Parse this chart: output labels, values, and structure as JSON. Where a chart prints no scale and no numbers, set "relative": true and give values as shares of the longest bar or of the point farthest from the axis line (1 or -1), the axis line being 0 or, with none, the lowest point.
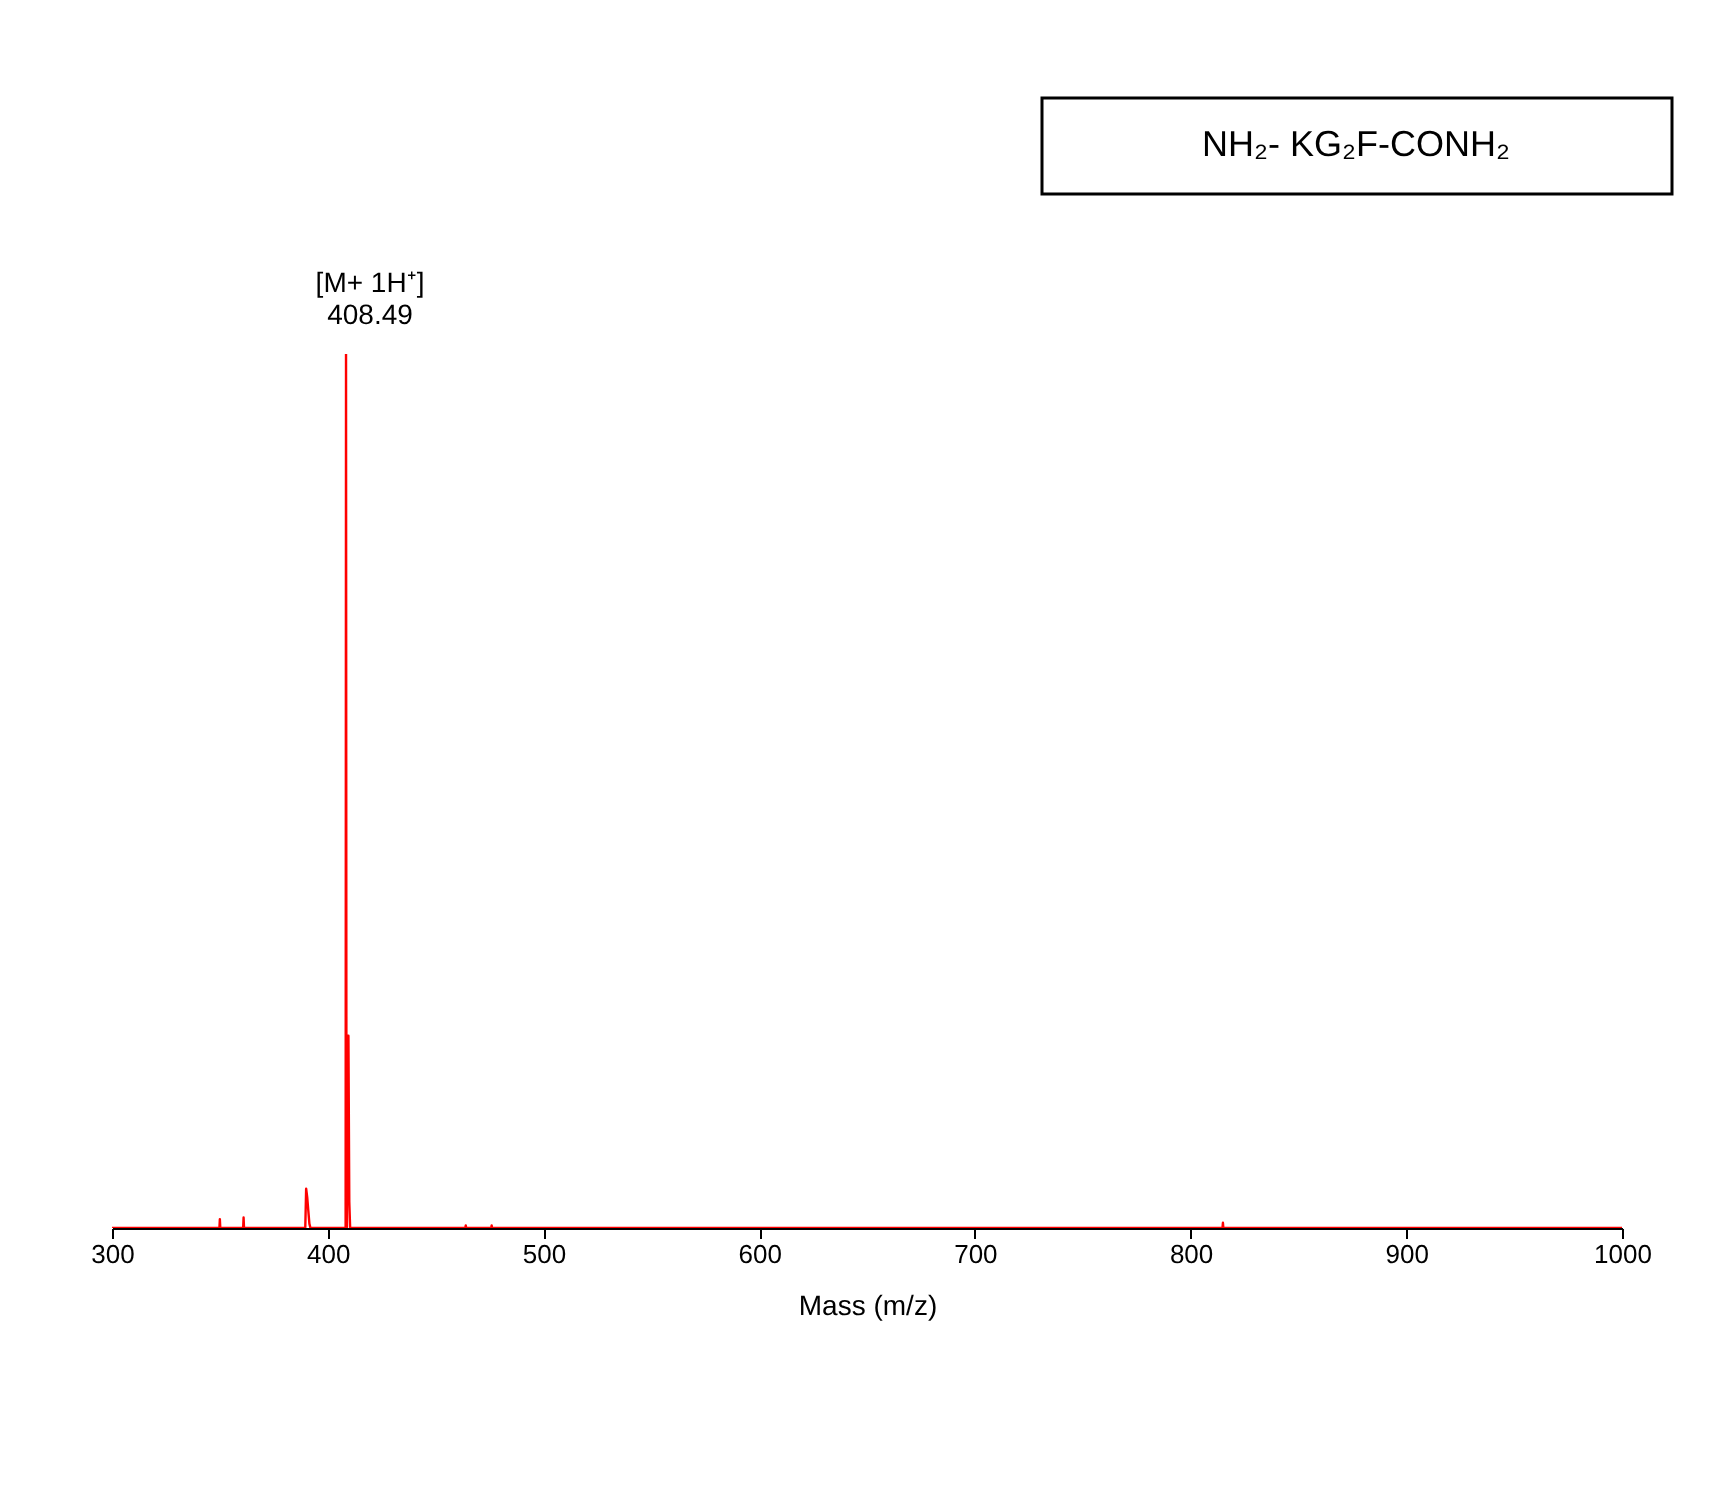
{
  "chart_data": {
    "type": "line",
    "relative": true,
    "xlabel": "Mass (m/z)",
    "xlim": [
      300,
      1000
    ],
    "xticks": [
      300,
      400,
      500,
      600,
      700,
      800,
      900,
      1000
    ],
    "grid": false,
    "marker": "none",
    "line_style": "solid",
    "annotations": [
      "NH₂- KG₂F-CONH₂",
      {
        "text": "[M+ 1H⁺]",
        "x": 408.49,
        "y": 1
      },
      {
        "text": "408.49",
        "x": 408.49,
        "y": 1
      }
    ],
    "x": [
      300,
      349.8,
      350,
      350.2,
      360.8,
      361,
      361.2,
      389.6,
      390,
      390.5,
      391,
      391.5,
      392,
      407.8,
      408.3,
      408.49,
      408.7,
      408.9,
      409.2,
      409.6,
      410,
      410.4,
      463.8,
      464,
      464.2,
      475.8,
      476,
      476.2,
      814.8,
      815,
      815.2,
      1000
    ],
    "series": [
      {
        "color": "#ff0000",
        "values": [
          0,
          0,
          0.01,
          0,
          0,
          0.012,
          0,
          0,
          0.045,
          0.035,
          0.02,
          0.005,
          0,
          0,
          0,
          1,
          0,
          0,
          0.22,
          0.22,
          0.03,
          0,
          0,
          0.003,
          0,
          0,
          0.003,
          0,
          0,
          0.006,
          0,
          0
        ]
      }
    ]
  }
}
